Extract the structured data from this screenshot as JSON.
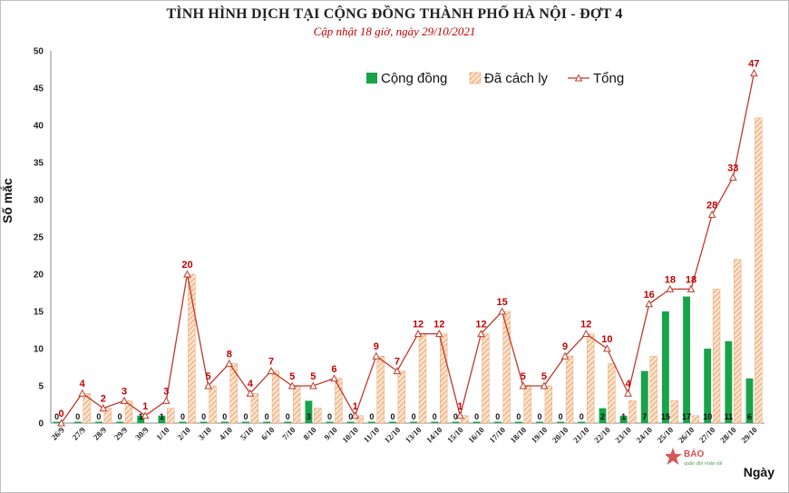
{
  "chart_data": {
    "type": "bar",
    "title": "TÌNH HÌNH DỊCH TẠI CỘNG ĐỒNG THÀNH PHỐ HÀ NỘI - ĐỢT 4",
    "subtitle": "Cập nhật 18 giờ, ngày 29/10/2021",
    "xlabel": "Ngày",
    "ylabel": "Số mắc",
    "ylim": [
      0,
      50
    ],
    "yticks": [
      0,
      5,
      10,
      15,
      20,
      25,
      30,
      35,
      40,
      45,
      50
    ],
    "legend_position": "top-right",
    "categories": [
      "26/9",
      "27/9",
      "28/9",
      "29/9",
      "30/9",
      "1/10",
      "2/10",
      "3/10",
      "4/10",
      "5/10",
      "6/10",
      "7/10",
      "8/10",
      "9/10",
      "10/10",
      "11/10",
      "12/10",
      "13/10",
      "14/10",
      "15/10",
      "16/10",
      "17/10",
      "18/10",
      "19/10",
      "20/10",
      "21/10",
      "22/10",
      "23/10",
      "24/10",
      "25/10",
      "26/10",
      "27/10",
      "28/10",
      "29/10"
    ],
    "series": [
      {
        "name": "Cộng đồng",
        "kind": "bar",
        "color": "#18a34a",
        "values": [
          0,
          0,
          0,
          0,
          1,
          1,
          0,
          0,
          0,
          0,
          0,
          0,
          3,
          0,
          0,
          0,
          0,
          0,
          0,
          0,
          0,
          0,
          0,
          0,
          0,
          0,
          2,
          1,
          7,
          15,
          17,
          10,
          11,
          6
        ]
      },
      {
        "name": "Đã cách ly",
        "kind": "bar",
        "color": "#f0a060",
        "values": [
          0,
          4,
          2,
          3,
          0,
          2,
          20,
          5,
          8,
          4,
          7,
          5,
          2,
          6,
          1,
          9,
          7,
          12,
          12,
          1,
          12,
          15,
          5,
          5,
          9,
          12,
          8,
          3,
          9,
          3,
          1,
          18,
          22,
          41
        ]
      },
      {
        "name": "Tổng",
        "kind": "line",
        "color": "#c0392b",
        "values": [
          0,
          4,
          2,
          3,
          1,
          3,
          20,
          5,
          8,
          4,
          7,
          5,
          5,
          6,
          1,
          9,
          7,
          12,
          12,
          1,
          12,
          15,
          5,
          5,
          9,
          12,
          10,
          4,
          16,
          18,
          18,
          28,
          33,
          47
        ]
      }
    ]
  },
  "watermark": "BÁO QUÂN ĐỘI NHÂN DÂN"
}
